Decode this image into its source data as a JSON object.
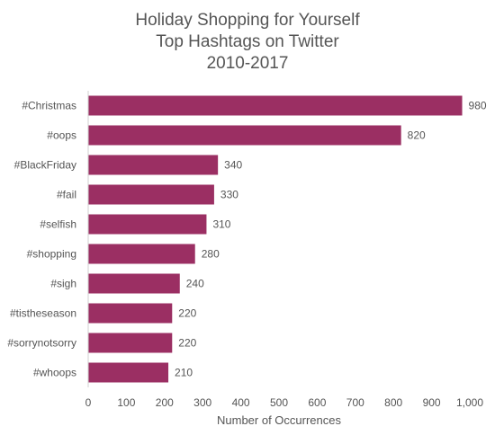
{
  "chart_data": {
    "type": "bar",
    "orientation": "horizontal",
    "title_lines": [
      "Holiday Shopping for Yourself",
      "Top Hashtags on Twitter",
      "2010-2017"
    ],
    "xlabel": "Number of Occurrences",
    "ylabel": "",
    "categories": [
      "#Christmas",
      "#oops",
      "#BlackFriday",
      "#fail",
      "#selfish",
      "#shopping",
      "#sigh",
      "#tistheseason",
      "#sorrynotsorry",
      "#whoops"
    ],
    "values": [
      980,
      820,
      340,
      330,
      310,
      280,
      240,
      220,
      220,
      210
    ],
    "data_labels": [
      "980",
      "820",
      "340",
      "330",
      "310",
      "280",
      "240",
      "220",
      "220",
      "210"
    ],
    "xlim": [
      0,
      1000
    ],
    "xticks": [
      0,
      100,
      200,
      300,
      400,
      500,
      600,
      700,
      800,
      900,
      1000
    ],
    "xtick_labels": [
      "0",
      "100",
      "200",
      "300",
      "400",
      "500",
      "600",
      "700",
      "800",
      "900",
      "1,000"
    ],
    "grid": false,
    "bar_color": "#9B2F63",
    "text_color": "#555555",
    "axis_color": "#D0D0D0"
  }
}
